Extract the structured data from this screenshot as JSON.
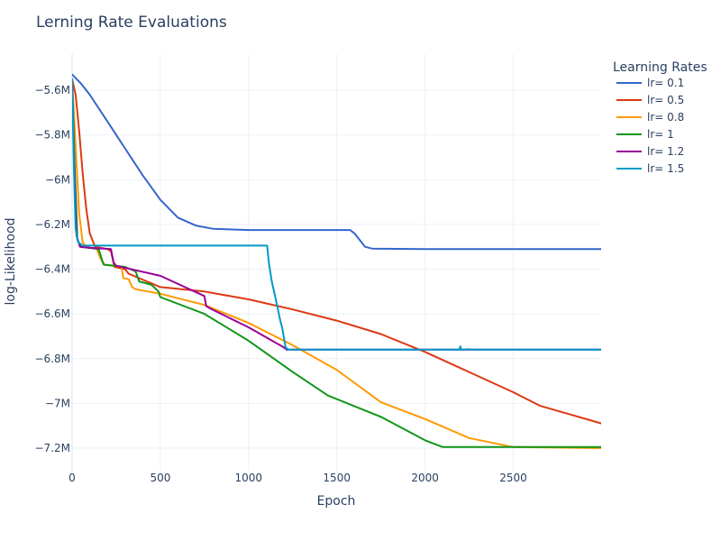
{
  "chart_data": {
    "type": "line",
    "title": "Lerning Rate Evaluations",
    "xlabel": "Epoch",
    "ylabel": "log-Likelihood",
    "xlim": [
      0,
      3000
    ],
    "ylim": [
      -7.27,
      -5.45
    ],
    "x_ticks": [
      0,
      500,
      1000,
      1500,
      2000,
      2500
    ],
    "x_tick_labels": [
      "0",
      "500",
      "1000",
      "1500",
      "2000",
      "2500"
    ],
    "y_ticks": [
      -5.6,
      -5.8,
      -6.0,
      -6.2,
      -6.4,
      -6.6,
      -6.8,
      -7.0,
      -7.2
    ],
    "y_tick_labels": [
      "−5.6M",
      "−5.8M",
      "−6M",
      "−6.2M",
      "−6.4M",
      "−6.6M",
      "−6.8M",
      "−7M",
      "−7.2M"
    ],
    "y_unit": "M",
    "grid": true,
    "legend": {
      "title": "Learning Rates",
      "position": "right"
    },
    "series": [
      {
        "name": "lr= 0.1",
        "color": "#3366cc",
        "points": [
          [
            0,
            -5.53
          ],
          [
            50,
            -5.57
          ],
          [
            100,
            -5.62
          ],
          [
            200,
            -5.74
          ],
          [
            300,
            -5.86
          ],
          [
            400,
            -5.98
          ],
          [
            500,
            -6.09
          ],
          [
            600,
            -6.17
          ],
          [
            700,
            -6.205
          ],
          [
            800,
            -6.22
          ],
          [
            1000,
            -6.225
          ],
          [
            1200,
            -6.225
          ],
          [
            1400,
            -6.225
          ],
          [
            1575,
            -6.225
          ],
          [
            1600,
            -6.24
          ],
          [
            1630,
            -6.27
          ],
          [
            1660,
            -6.3
          ],
          [
            1700,
            -6.308
          ],
          [
            2000,
            -6.31
          ],
          [
            2500,
            -6.31
          ],
          [
            3000,
            -6.31
          ]
        ]
      },
      {
        "name": "lr= 0.5",
        "color": "#dc3912",
        "points": [
          [
            0,
            -5.55
          ],
          [
            20,
            -5.62
          ],
          [
            40,
            -5.78
          ],
          [
            60,
            -5.97
          ],
          [
            80,
            -6.13
          ],
          [
            100,
            -6.24
          ],
          [
            130,
            -6.3
          ],
          [
            200,
            -6.31
          ],
          [
            220,
            -6.32
          ],
          [
            240,
            -6.39
          ],
          [
            300,
            -6.4
          ],
          [
            320,
            -6.42
          ],
          [
            500,
            -6.48
          ],
          [
            750,
            -6.5
          ],
          [
            1000,
            -6.535
          ],
          [
            1250,
            -6.58
          ],
          [
            1500,
            -6.63
          ],
          [
            1750,
            -6.69
          ],
          [
            2000,
            -6.77
          ],
          [
            2250,
            -6.86
          ],
          [
            2500,
            -6.95
          ],
          [
            2650,
            -7.01
          ],
          [
            3000,
            -7.09
          ]
        ]
      },
      {
        "name": "lr= 0.8",
        "color": "#ff9900",
        "points": [
          [
            0,
            -5.55
          ],
          [
            20,
            -5.85
          ],
          [
            40,
            -6.15
          ],
          [
            60,
            -6.28
          ],
          [
            80,
            -6.3
          ],
          [
            140,
            -6.31
          ],
          [
            160,
            -6.35
          ],
          [
            180,
            -6.38
          ],
          [
            280,
            -6.39
          ],
          [
            290,
            -6.44
          ],
          [
            320,
            -6.445
          ],
          [
            340,
            -6.48
          ],
          [
            360,
            -6.49
          ],
          [
            500,
            -6.51
          ],
          [
            750,
            -6.56
          ],
          [
            1000,
            -6.64
          ],
          [
            1250,
            -6.74
          ],
          [
            1500,
            -6.85
          ],
          [
            1750,
            -6.995
          ],
          [
            2000,
            -7.07
          ],
          [
            2250,
            -7.155
          ],
          [
            2500,
            -7.195
          ],
          [
            3000,
            -7.2
          ]
        ]
      },
      {
        "name": "lr= 1",
        "color": "#109618",
        "points": [
          [
            0,
            -5.55
          ],
          [
            15,
            -5.95
          ],
          [
            30,
            -6.27
          ],
          [
            50,
            -6.3
          ],
          [
            150,
            -6.31
          ],
          [
            170,
            -6.36
          ],
          [
            180,
            -6.38
          ],
          [
            300,
            -6.39
          ],
          [
            360,
            -6.41
          ],
          [
            380,
            -6.455
          ],
          [
            450,
            -6.47
          ],
          [
            490,
            -6.5
          ],
          [
            500,
            -6.525
          ],
          [
            750,
            -6.6
          ],
          [
            1000,
            -6.72
          ],
          [
            1250,
            -6.86
          ],
          [
            1450,
            -6.965
          ],
          [
            1750,
            -7.06
          ],
          [
            2000,
            -7.165
          ],
          [
            2100,
            -7.195
          ],
          [
            2500,
            -7.195
          ],
          [
            3000,
            -7.195
          ]
        ]
      },
      {
        "name": "lr= 1.2",
        "color": "#990099",
        "points": [
          [
            0,
            -5.55
          ],
          [
            10,
            -5.9
          ],
          [
            25,
            -6.25
          ],
          [
            45,
            -6.3
          ],
          [
            100,
            -6.305
          ],
          [
            220,
            -6.31
          ],
          [
            235,
            -6.37
          ],
          [
            250,
            -6.385
          ],
          [
            500,
            -6.43
          ],
          [
            750,
            -6.52
          ],
          [
            760,
            -6.565
          ],
          [
            780,
            -6.575
          ],
          [
            1000,
            -6.66
          ],
          [
            1200,
            -6.75
          ],
          [
            1215,
            -6.76
          ],
          [
            3000,
            -6.76
          ]
        ]
      },
      {
        "name": "lr= 1.5",
        "color": "#0099c6",
        "points": [
          [
            0,
            -5.55
          ],
          [
            10,
            -5.95
          ],
          [
            20,
            -6.22
          ],
          [
            35,
            -6.28
          ],
          [
            60,
            -6.295
          ],
          [
            500,
            -6.295
          ],
          [
            1050,
            -6.295
          ],
          [
            1105,
            -6.295
          ],
          [
            1115,
            -6.37
          ],
          [
            1130,
            -6.45
          ],
          [
            1150,
            -6.52
          ],
          [
            1180,
            -6.63
          ],
          [
            1190,
            -6.66
          ],
          [
            1210,
            -6.75
          ],
          [
            1225,
            -6.76
          ],
          [
            2195,
            -6.76
          ],
          [
            2200,
            -6.745
          ],
          [
            2205,
            -6.76
          ],
          [
            2250,
            -6.758
          ],
          [
            2260,
            -6.76
          ],
          [
            3000,
            -6.76
          ]
        ]
      }
    ]
  }
}
